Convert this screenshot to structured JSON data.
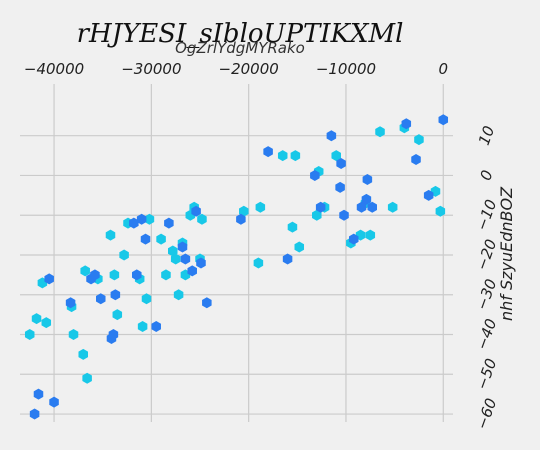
{
  "chart_data": {
    "type": "scatter",
    "title": "rHJYESI_sIbloUPTIKXMl",
    "xlabel": "OgZrlYdgMYRako",
    "ylabel": "nhf SzyuEdnBOZ",
    "x_axis_position": "top",
    "y_axis_position": "right",
    "grid": true,
    "xlim": [
      -43500,
      1000
    ],
    "ylim": [
      -62,
      23
    ],
    "xticks": [
      -40000,
      -30000,
      -20000,
      -10000,
      0
    ],
    "yticks": [
      -60,
      -50,
      -40,
      -30,
      -20,
      -10,
      0,
      10
    ],
    "colors": {
      "cyan": "#18c8e8",
      "blue": "#2a7cf0"
    },
    "series": [
      {
        "color": "cyan",
        "points": [
          [
            -42500,
            -40
          ],
          [
            -41800,
            -36
          ],
          [
            -41200,
            -27
          ],
          [
            -40800,
            -37
          ],
          [
            -38200,
            -33
          ],
          [
            -38000,
            -40
          ],
          [
            -37000,
            -45
          ],
          [
            -36600,
            -51
          ],
          [
            -36800,
            -24
          ],
          [
            -35500,
            -26
          ],
          [
            -34200,
            -15
          ],
          [
            -33800,
            -25
          ],
          [
            -33500,
            -35
          ],
          [
            -32800,
            -20
          ],
          [
            -32400,
            -12
          ],
          [
            -31200,
            -26
          ],
          [
            -30900,
            -38
          ],
          [
            -30500,
            -31
          ],
          [
            -30200,
            -11
          ],
          [
            -29000,
            -16
          ],
          [
            -28500,
            -25
          ],
          [
            -27800,
            -19
          ],
          [
            -27500,
            -21
          ],
          [
            -27200,
            -30
          ],
          [
            -26800,
            -17
          ],
          [
            -26500,
            -25
          ],
          [
            -26000,
            -10
          ],
          [
            -25600,
            -8
          ],
          [
            -25000,
            -21
          ],
          [
            -24800,
            -11
          ],
          [
            -20500,
            -9
          ],
          [
            -19000,
            -22
          ],
          [
            -18800,
            -8
          ],
          [
            -16500,
            5
          ],
          [
            -15200,
            5
          ],
          [
            -15500,
            -13
          ],
          [
            -14800,
            -18
          ],
          [
            -13000,
            -10
          ],
          [
            -12800,
            1
          ],
          [
            -12200,
            -8
          ],
          [
            -11000,
            5
          ],
          [
            -9500,
            -17
          ],
          [
            -8500,
            -15
          ],
          [
            -8000,
            -7
          ],
          [
            -7500,
            -15
          ],
          [
            -6500,
            11
          ],
          [
            -5200,
            -8
          ],
          [
            -4000,
            12
          ],
          [
            -2500,
            9
          ],
          [
            -800,
            -4
          ],
          [
            -300,
            -9
          ]
        ]
      },
      {
        "color": "blue",
        "points": [
          [
            -42000,
            -60
          ],
          [
            -41600,
            -55
          ],
          [
            -40500,
            -26
          ],
          [
            -40000,
            -57
          ],
          [
            -38300,
            -32
          ],
          [
            -36200,
            -26
          ],
          [
            -35800,
            -25
          ],
          [
            -35200,
            -31
          ],
          [
            -34100,
            -41
          ],
          [
            -33900,
            -40
          ],
          [
            -33700,
            -30
          ],
          [
            -31800,
            -12
          ],
          [
            -31500,
            -25
          ],
          [
            -31000,
            -11
          ],
          [
            -30600,
            -16
          ],
          [
            -29500,
            -38
          ],
          [
            -28200,
            -12
          ],
          [
            -26800,
            -18
          ],
          [
            -26500,
            -21
          ],
          [
            -25800,
            -24
          ],
          [
            -25400,
            -9
          ],
          [
            -24900,
            -22
          ],
          [
            -24300,
            -32
          ],
          [
            -20800,
            -11
          ],
          [
            -18000,
            6
          ],
          [
            -16000,
            -21
          ],
          [
            -13200,
            0
          ],
          [
            -12600,
            -8
          ],
          [
            -11500,
            10
          ],
          [
            -10600,
            -3
          ],
          [
            -10500,
            3
          ],
          [
            -10200,
            -10
          ],
          [
            -9200,
            -16
          ],
          [
            -8400,
            -8
          ],
          [
            -7900,
            -6
          ],
          [
            -7800,
            -1
          ],
          [
            -7300,
            -8
          ],
          [
            -3800,
            13
          ],
          [
            -2800,
            4
          ],
          [
            -1500,
            -5
          ],
          [
            0,
            14
          ]
        ]
      }
    ]
  }
}
